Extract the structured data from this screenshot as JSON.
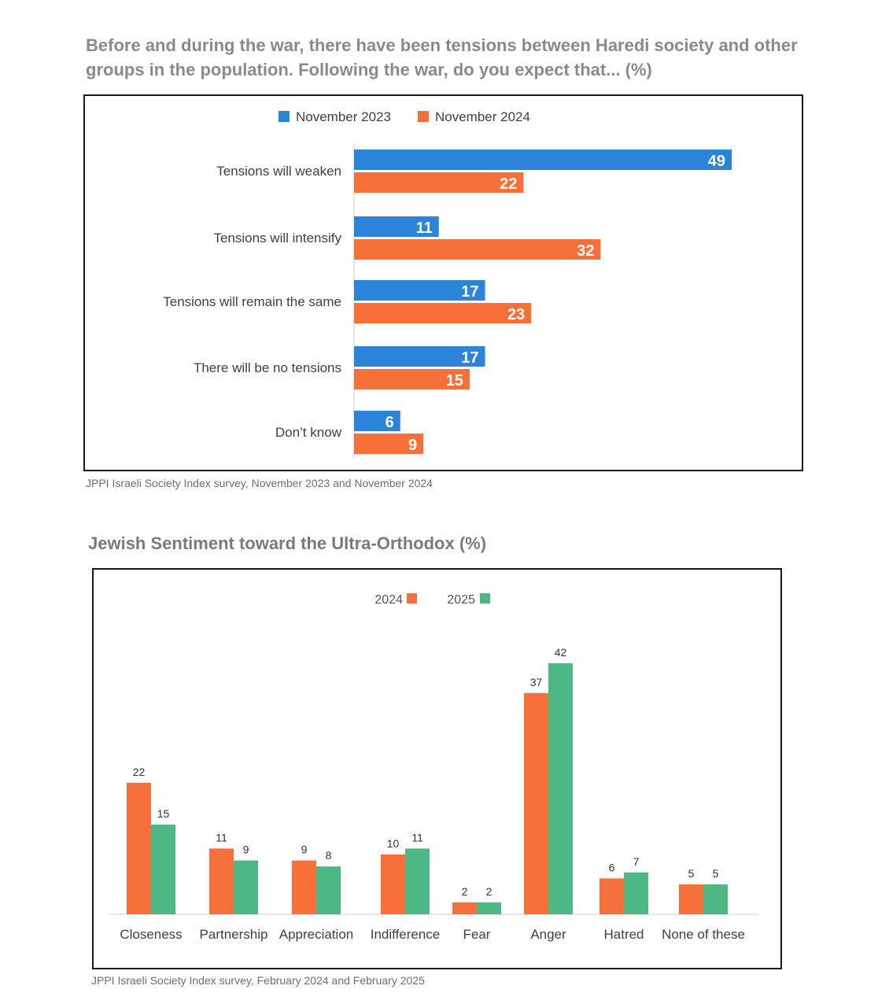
{
  "chart1": {
    "title": "Before and during the war, there have been tensions between Haredi society and other groups in the population.  Following the war, do you expect that... (%)",
    "source": "JPPI Israeli Society Index survey, November 2023 and November 2024"
  },
  "chart2": {
    "title": "Jewish Sentiment toward the Ultra-Orthodox (%)",
    "source": "JPPI Israeli Society Index survey, February 2024 and February 2025"
  },
  "colors": {
    "nov2023": "#2b84d8",
    "nov2024": "#f87039",
    "y2024": "#f87039",
    "y2025": "#4db883"
  },
  "chart_data": [
    {
      "type": "bar",
      "orientation": "horizontal",
      "title": "Before and during the war, there have been tensions between Haredi society and other groups in the population.  Following the war, do you expect that... (%)",
      "categories": [
        "Tensions will weaken",
        "Tensions will intensify",
        "Tensions will remain the same",
        "There will be no tensions",
        "Don’t know"
      ],
      "series": [
        {
          "name": "November 2023",
          "values": [
            49,
            11,
            17,
            17,
            6
          ]
        },
        {
          "name": "November 2024",
          "values": [
            22,
            32,
            23,
            15,
            9
          ]
        }
      ],
      "xlim": [
        0,
        50
      ],
      "legend": "top-center",
      "grid": false
    },
    {
      "type": "bar",
      "orientation": "vertical",
      "title": "Jewish Sentiment toward the Ultra-Orthodox (%)",
      "categories": [
        "Closeness",
        "Partnership",
        "Appreciation",
        "Indifference",
        "Fear",
        "Anger",
        "Hatred",
        "None of these"
      ],
      "series": [
        {
          "name": "2024",
          "values": [
            22,
            11,
            9,
            10,
            2,
            37,
            6,
            5
          ]
        },
        {
          "name": "2025",
          "values": [
            15,
            9,
            8,
            11,
            2,
            42,
            7,
            5
          ]
        }
      ],
      "ylim": [
        0,
        45
      ],
      "legend": "top-center",
      "grid": false
    }
  ]
}
